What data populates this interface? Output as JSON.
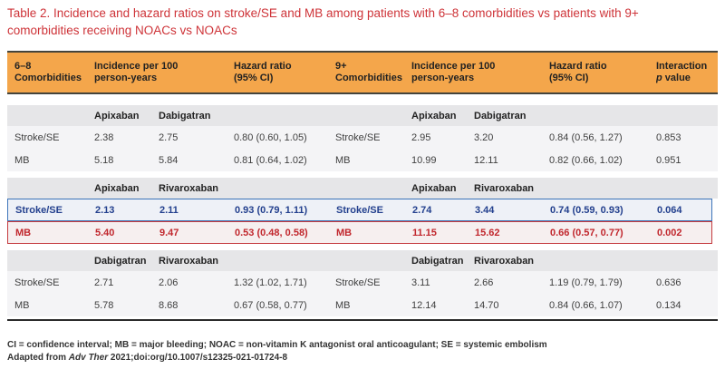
{
  "title": "Table 2. Incidence and hazard ratios on stroke/SE and MB among patients with 6–8 comorbidities vs patients with 9+ comorbidities receiving NOACs vs NOACs",
  "colors": {
    "title_red": "#CE3338",
    "header_orange": "#F4A64B",
    "rule_dark": "#44443C",
    "subheader_gray": "#E6E6E8",
    "row_gray": "#F4F4F6",
    "highlight_blue_border": "#3D74B9",
    "highlight_blue_text": "#23408E",
    "highlight_blue_bg": "#EEF1F7",
    "highlight_red_border": "#C53A3E",
    "highlight_red_text": "#C1272D",
    "highlight_red_bg": "#F6EFEF"
  },
  "header": {
    "columns": [
      {
        "line1": "6–8",
        "line2": "Comorbidities"
      },
      {
        "line1": "Incidence per 100",
        "line2": "person-years"
      },
      {
        "line1": "Hazard ratio",
        "line2": "(95% CI)"
      },
      {
        "line1": "9+",
        "line2": "Comorbidities"
      },
      {
        "line1": "Incidence per 100",
        "line2": "person-years"
      },
      {
        "line1": "Hazard ratio",
        "line2": "(95% CI)"
      },
      {
        "line1": "Interaction",
        "line2_italic": "p",
        "line2_rest": "value"
      }
    ]
  },
  "sections": [
    {
      "drugs_left": [
        "Apixaban",
        "Dabigatran"
      ],
      "drugs_right": [
        "Apixaban",
        "Dabigatran"
      ],
      "rows": [
        {
          "outcome": "Stroke/SE",
          "inc_left": [
            "2.38",
            "2.75"
          ],
          "hr_left": "0.80 (0.60, 1.05)",
          "inc_right": [
            "2.95",
            "3.20"
          ],
          "hr_right": "0.84 (0.56, 1.27)",
          "p": "0.853"
        },
        {
          "outcome": "MB",
          "inc_left": [
            "5.18",
            "5.84"
          ],
          "hr_left": "0.81 (0.64, 1.02)",
          "inc_right": [
            "10.99",
            "12.11"
          ],
          "hr_right": "0.82 (0.66, 1.02)",
          "p": "0.951"
        }
      ]
    },
    {
      "drugs_left": [
        "Apixaban",
        "Rivaroxaban"
      ],
      "drugs_right": [
        "Apixaban",
        "Rivaroxaban"
      ],
      "rows": [
        {
          "outcome": "Stroke/SE",
          "inc_left": [
            "2.13",
            "2.11"
          ],
          "hr_left": "0.93 (0.79, 1.11)",
          "inc_right": [
            "2.74",
            "3.44"
          ],
          "hr_right": "0.74 (0.59, 0.93)",
          "p": "0.064",
          "highlight": "blue"
        },
        {
          "outcome": "MB",
          "inc_left": [
            "5.40",
            "9.47"
          ],
          "hr_left": "0.53 (0.48, 0.58)",
          "inc_right": [
            "11.15",
            "15.62"
          ],
          "hr_right": "0.66 (0.57, 0.77)",
          "p": "0.002",
          "highlight": "red"
        }
      ]
    },
    {
      "drugs_left": [
        "Dabigatran",
        "Rivaroxaban"
      ],
      "drugs_right": [
        "Dabigatran",
        "Rivaroxaban"
      ],
      "rows": [
        {
          "outcome": "Stroke/SE",
          "inc_left": [
            "2.71",
            "2.06"
          ],
          "hr_left": "1.32 (1.02, 1.71)",
          "inc_right": [
            "3.11",
            "2.66"
          ],
          "hr_right": "1.19 (0.79, 1.79)",
          "p": "0.636"
        },
        {
          "outcome": "MB",
          "inc_left": [
            "5.78",
            "8.68"
          ],
          "hr_left": "0.67 (0.58, 0.77)",
          "inc_right": [
            "12.14",
            "14.70"
          ],
          "hr_right": "0.84 (0.66, 1.07)",
          "p": "0.134"
        }
      ]
    }
  ],
  "footnotes": {
    "abbrev": "CI = confidence interval; MB = major bleeding; NOAC = non-vitamin K antagonist oral anticoagulant; SE = systemic embolism",
    "source_prefix": "Adapted from ",
    "source_italic": "Adv Ther",
    "source_rest": " 2021;doi:org/10.1007/s12325-021-01724-8"
  }
}
